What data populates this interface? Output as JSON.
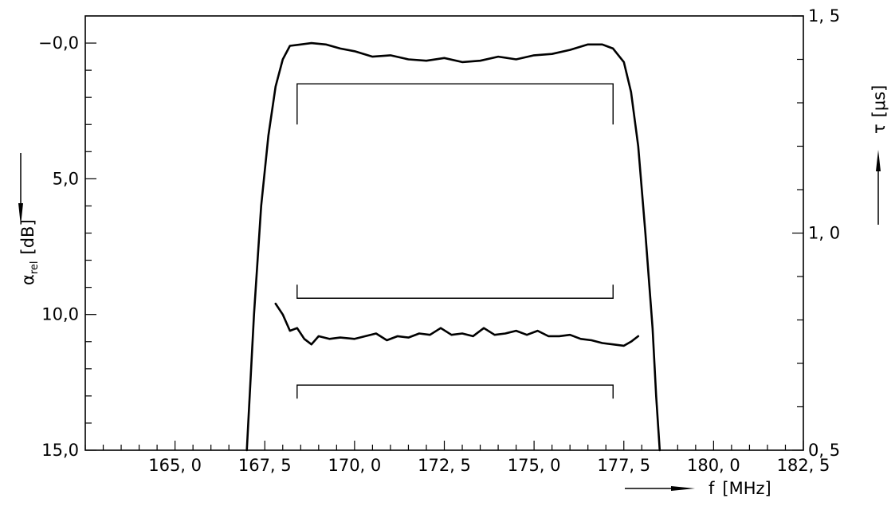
{
  "chart_data": {
    "type": "line",
    "x_axis": {
      "label": "f",
      "unit": "[MHz]",
      "range": [
        162.5,
        182.5
      ],
      "ticks": [
        {
          "value": 165.0,
          "label": "165, 0"
        },
        {
          "value": 167.5,
          "label": "167, 5"
        },
        {
          "value": 170.0,
          "label": "170, 0"
        },
        {
          "value": 172.5,
          "label": "172, 5"
        },
        {
          "value": 175.0,
          "label": "175, 0"
        },
        {
          "value": 177.5,
          "label": "177, 5"
        },
        {
          "value": 180.0,
          "label": "180, 0"
        },
        {
          "value": 182.5,
          "label": "182, 5"
        }
      ],
      "minor_step": 0.5
    },
    "y_left": {
      "label": "α",
      "label_sub": "rel",
      "unit": "[dB]",
      "range": [
        -1.0,
        15.0
      ],
      "inverted": true,
      "ticks": [
        {
          "value": 0.0,
          "label": "−0,0"
        },
        {
          "value": 5.0,
          "label": "5,0"
        },
        {
          "value": 10.0,
          "label": "10,0"
        },
        {
          "value": 15.0,
          "label": "15,0"
        }
      ],
      "minor_step": 1.0
    },
    "y_right": {
      "label": "τ",
      "unit": "[μs]",
      "range": [
        0.5,
        1.5
      ],
      "ticks": [
        {
          "value": 0.5,
          "label": "0, 5"
        },
        {
          "value": 1.0,
          "label": "1, 0"
        },
        {
          "value": 1.5,
          "label": "1, 5"
        }
      ],
      "minor_step": 0.1
    },
    "series": [
      {
        "axis": "left",
        "points": [
          [
            167.0,
            15.0
          ],
          [
            167.2,
            10.0
          ],
          [
            167.4,
            6.0
          ],
          [
            167.6,
            3.4
          ],
          [
            167.8,
            1.6
          ],
          [
            168.0,
            0.6
          ],
          [
            168.2,
            0.1
          ],
          [
            168.5,
            0.05
          ],
          [
            168.8,
            0.0
          ],
          [
            169.2,
            0.05
          ],
          [
            169.6,
            0.2
          ],
          [
            170.0,
            0.3
          ],
          [
            170.5,
            0.5
          ],
          [
            171.0,
            0.45
          ],
          [
            171.5,
            0.6
          ],
          [
            172.0,
            0.65
          ],
          [
            172.5,
            0.55
          ],
          [
            173.0,
            0.7
          ],
          [
            173.5,
            0.65
          ],
          [
            174.0,
            0.5
          ],
          [
            174.5,
            0.6
          ],
          [
            175.0,
            0.45
          ],
          [
            175.5,
            0.4
          ],
          [
            176.0,
            0.25
          ],
          [
            176.5,
            0.05
          ],
          [
            176.9,
            0.05
          ],
          [
            177.2,
            0.2
          ],
          [
            177.5,
            0.7
          ],
          [
            177.7,
            1.8
          ],
          [
            177.9,
            3.8
          ],
          [
            178.1,
            7.0
          ],
          [
            178.3,
            10.5
          ],
          [
            178.4,
            13.0
          ],
          [
            178.5,
            15.0
          ]
        ]
      },
      {
        "axis": "left",
        "points": [
          [
            167.8,
            9.6
          ],
          [
            168.0,
            10.0
          ],
          [
            168.2,
            10.6
          ],
          [
            168.4,
            10.5
          ],
          [
            168.6,
            10.9
          ],
          [
            168.8,
            11.1
          ],
          [
            169.0,
            10.8
          ],
          [
            169.3,
            10.9
          ],
          [
            169.6,
            10.85
          ],
          [
            170.0,
            10.9
          ],
          [
            170.3,
            10.8
          ],
          [
            170.6,
            10.7
          ],
          [
            170.9,
            10.95
          ],
          [
            171.2,
            10.8
          ],
          [
            171.5,
            10.85
          ],
          [
            171.8,
            10.7
          ],
          [
            172.1,
            10.75
          ],
          [
            172.4,
            10.5
          ],
          [
            172.7,
            10.75
          ],
          [
            173.0,
            10.7
          ],
          [
            173.3,
            10.8
          ],
          [
            173.6,
            10.5
          ],
          [
            173.9,
            10.75
          ],
          [
            174.2,
            10.7
          ],
          [
            174.5,
            10.6
          ],
          [
            174.8,
            10.75
          ],
          [
            175.1,
            10.6
          ],
          [
            175.4,
            10.8
          ],
          [
            175.7,
            10.8
          ],
          [
            176.0,
            10.75
          ],
          [
            176.3,
            10.9
          ],
          [
            176.6,
            10.95
          ],
          [
            176.9,
            11.05
          ],
          [
            177.2,
            11.1
          ],
          [
            177.5,
            11.15
          ],
          [
            177.7,
            11.0
          ],
          [
            177.9,
            10.8
          ]
        ]
      }
    ],
    "tolerance_brackets": [
      {
        "axis": "left",
        "y": 1.5,
        "x_range": [
          168.4,
          177.2
        ],
        "legs": "down",
        "leg_length": 1.5
      },
      {
        "axis": "left",
        "y": 9.4,
        "x_range": [
          168.4,
          177.2
        ],
        "legs": "up",
        "leg_length": 0.5
      },
      {
        "axis": "left",
        "y": 12.6,
        "x_range": [
          168.4,
          177.2
        ],
        "legs": "down",
        "leg_length": 0.5
      }
    ]
  }
}
